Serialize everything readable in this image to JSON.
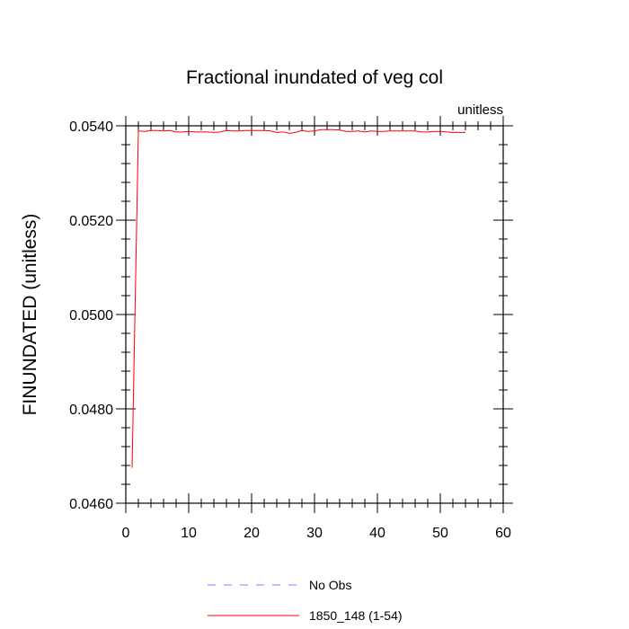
{
  "chart_data": {
    "type": "line",
    "title": "Fractional inundated of veg col",
    "units_label": "unitless",
    "xlabel": "",
    "ylabel": "FINUNDATED  (unitless)",
    "xlim": [
      0,
      60
    ],
    "ylim": [
      0.046,
      0.054
    ],
    "x_ticks": [
      0,
      10,
      20,
      30,
      40,
      50,
      60
    ],
    "x_tick_labels": [
      "0",
      "10",
      "20",
      "30",
      "40",
      "50",
      "60"
    ],
    "y_ticks": [
      0.046,
      0.048,
      0.05,
      0.052,
      0.054
    ],
    "y_tick_labels": [
      "0.0460",
      "0.0480",
      "0.0500",
      "0.0520",
      "0.0540"
    ],
    "grid": false,
    "legend_position": "bottom",
    "series": [
      {
        "name": "No Obs",
        "color": "#7d7dff",
        "style": "dashed",
        "x": [],
        "y": []
      },
      {
        "name": "1850_148 (1-54)",
        "color": "#ff0000",
        "style": "solid",
        "x": [
          1,
          2,
          3,
          4,
          5,
          6,
          7,
          8,
          9,
          10,
          11,
          12,
          13,
          14,
          15,
          16,
          17,
          18,
          19,
          20,
          21,
          22,
          23,
          24,
          25,
          26,
          27,
          28,
          29,
          30,
          31,
          32,
          33,
          34,
          35,
          36,
          37,
          38,
          39,
          40,
          41,
          42,
          43,
          44,
          45,
          46,
          47,
          48,
          49,
          50,
          51,
          52,
          53,
          54
        ],
        "y": [
          0.04675,
          0.05389,
          0.05388,
          0.0539,
          0.0539,
          0.05389,
          0.0539,
          0.05387,
          0.05387,
          0.05388,
          0.05387,
          0.05387,
          0.05387,
          0.05386,
          0.05387,
          0.0539,
          0.05389,
          0.05389,
          0.0539,
          0.0539,
          0.0539,
          0.0539,
          0.05389,
          0.05386,
          0.05387,
          0.05384,
          0.05386,
          0.0539,
          0.05388,
          0.05389,
          0.05392,
          0.05392,
          0.05392,
          0.05391,
          0.05388,
          0.05388,
          0.05389,
          0.05387,
          0.05389,
          0.05388,
          0.05388,
          0.05389,
          0.05389,
          0.05389,
          0.05389,
          0.05389,
          0.05387,
          0.05387,
          0.05388,
          0.05388,
          0.05387,
          0.05386,
          0.05386,
          0.05386
        ]
      }
    ]
  }
}
